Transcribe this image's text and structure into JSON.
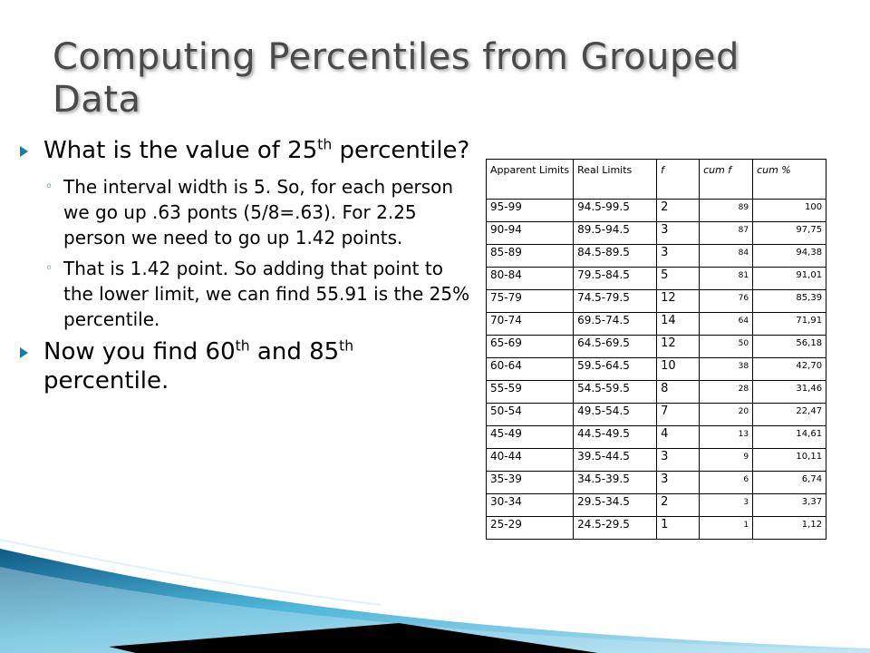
{
  "title": "Computing Percentiles from Grouped Data",
  "bullets": [
    {
      "pre": "What is the value of 25",
      "sup": "th",
      "post": " percentile?"
    },
    {
      "pre": "Now you find 60",
      "sup": "th",
      "mid": " and 85",
      "sup2": "th",
      "post": " percentile."
    }
  ],
  "subbullets": [
    "The interval width is 5. So, for each person we go up .63 ponts (5/8=.63). For 2.25 person we need to go up 1.42 points.",
    "That is 1.42 point. So adding that point to the lower limit, we can find 55.91 is the 25% percentile."
  ],
  "sub_marker": "◦",
  "table": {
    "headers": [
      "Apparent Limits",
      "Real Limits",
      "f",
      "cum f",
      "cum %"
    ],
    "rows": [
      [
        "95-99",
        "94.5-99.5",
        "2",
        "89",
        "100"
      ],
      [
        "90-94",
        "89.5-94.5",
        "3",
        "87",
        "97,75"
      ],
      [
        "85-89",
        "84.5-89.5",
        "3",
        "84",
        "94,38"
      ],
      [
        "80-84",
        "79.5-84.5",
        "5",
        "81",
        "91,01"
      ],
      [
        "75-79",
        "74.5-79.5",
        "12",
        "76",
        "85,39"
      ],
      [
        "70-74",
        "69.5-74.5",
        "14",
        "64",
        "71,91"
      ],
      [
        "65-69",
        "64.5-69.5",
        "12",
        "50",
        "56,18"
      ],
      [
        "60-64",
        "59.5-64.5",
        "10",
        "38",
        "42,70"
      ],
      [
        "55-59",
        "54.5-59.5",
        "8",
        "28",
        "31,46"
      ],
      [
        "50-54",
        "49.5-54.5",
        "7",
        "20",
        "22,47"
      ],
      [
        "45-49",
        "44.5-49.5",
        "4",
        "13",
        "14,61"
      ],
      [
        "40-44",
        "39.5-44.5",
        "3",
        "9",
        "10,11"
      ],
      [
        "35-39",
        "34.5-39.5",
        "3",
        "6",
        "6,74"
      ],
      [
        "30-34",
        "29.5-34.5",
        "2",
        "3",
        "3,37"
      ],
      [
        "25-29",
        "24.5-29.5",
        "1",
        "1",
        "1,12"
      ]
    ]
  },
  "colors": {
    "accent": "#1a7ca8",
    "title": "#4a4a4a"
  }
}
